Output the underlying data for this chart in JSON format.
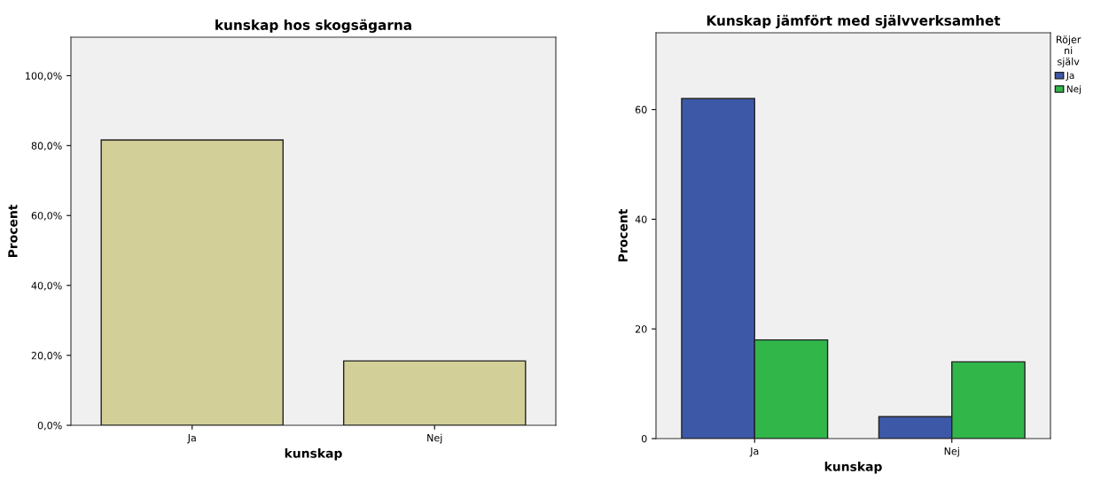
{
  "chart_data": [
    {
      "type": "bar",
      "title": "kunskap hos skogsägarna",
      "xlabel": "kunskap",
      "ylabel": "Procent",
      "categories": [
        "Ja",
        "Nej"
      ],
      "values": [
        81.6,
        18.4
      ],
      "color": "#d3cf98",
      "ylim": [
        0,
        111
      ],
      "yticks": [
        {
          "value": 0,
          "label": "0,0%"
        },
        {
          "value": 20,
          "label": "20,0%"
        },
        {
          "value": 40,
          "label": "40,0%"
        },
        {
          "value": 60,
          "label": "60,0%"
        },
        {
          "value": 80,
          "label": "80,0%"
        },
        {
          "value": 100,
          "label": "100,0%"
        }
      ]
    },
    {
      "type": "bar",
      "title": "Kunskap jämfört med självverksamhet",
      "xlabel": "kunskap",
      "ylabel": "Procent",
      "legend_title": "Röjer\nni\nsjälv",
      "legend": "right",
      "categories": [
        "Ja",
        "Nej"
      ],
      "series": [
        {
          "name": "Ja",
          "color": "#3e58a8",
          "values": [
            62,
            4
          ]
        },
        {
          "name": "Nej",
          "color": "#31b64a",
          "values": [
            18,
            14
          ]
        }
      ],
      "ylim": [
        0,
        74
      ],
      "yticks": [
        0,
        20,
        40,
        60
      ]
    }
  ]
}
